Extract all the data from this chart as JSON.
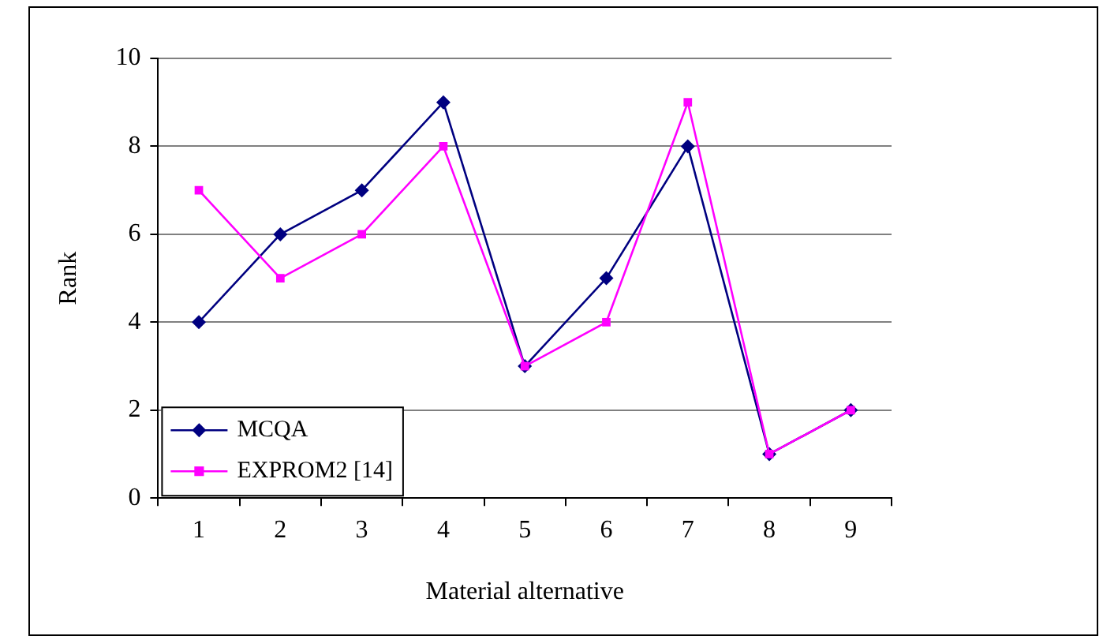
{
  "chart_data": {
    "type": "line",
    "xlabel": "Material alternative",
    "ylabel": "Rank",
    "categories": [
      "1",
      "2",
      "3",
      "4",
      "5",
      "6",
      "7",
      "8",
      "9"
    ],
    "series": [
      {
        "name": "MCQA",
        "color": "#000080",
        "marker": "diamond",
        "values": [
          4,
          6,
          7,
          9,
          3,
          5,
          8,
          1,
          2
        ]
      },
      {
        "name": "EXPROM2 [14]",
        "color": "#ff00ff",
        "marker": "square",
        "values": [
          7,
          5,
          6,
          8,
          3,
          4,
          9,
          1,
          2
        ]
      }
    ],
    "ylim": [
      0,
      10
    ],
    "yticks": [
      0,
      2,
      4,
      6,
      8,
      10
    ],
    "grid": "y",
    "legend": "bottom left",
    "line_style": "solid"
  }
}
